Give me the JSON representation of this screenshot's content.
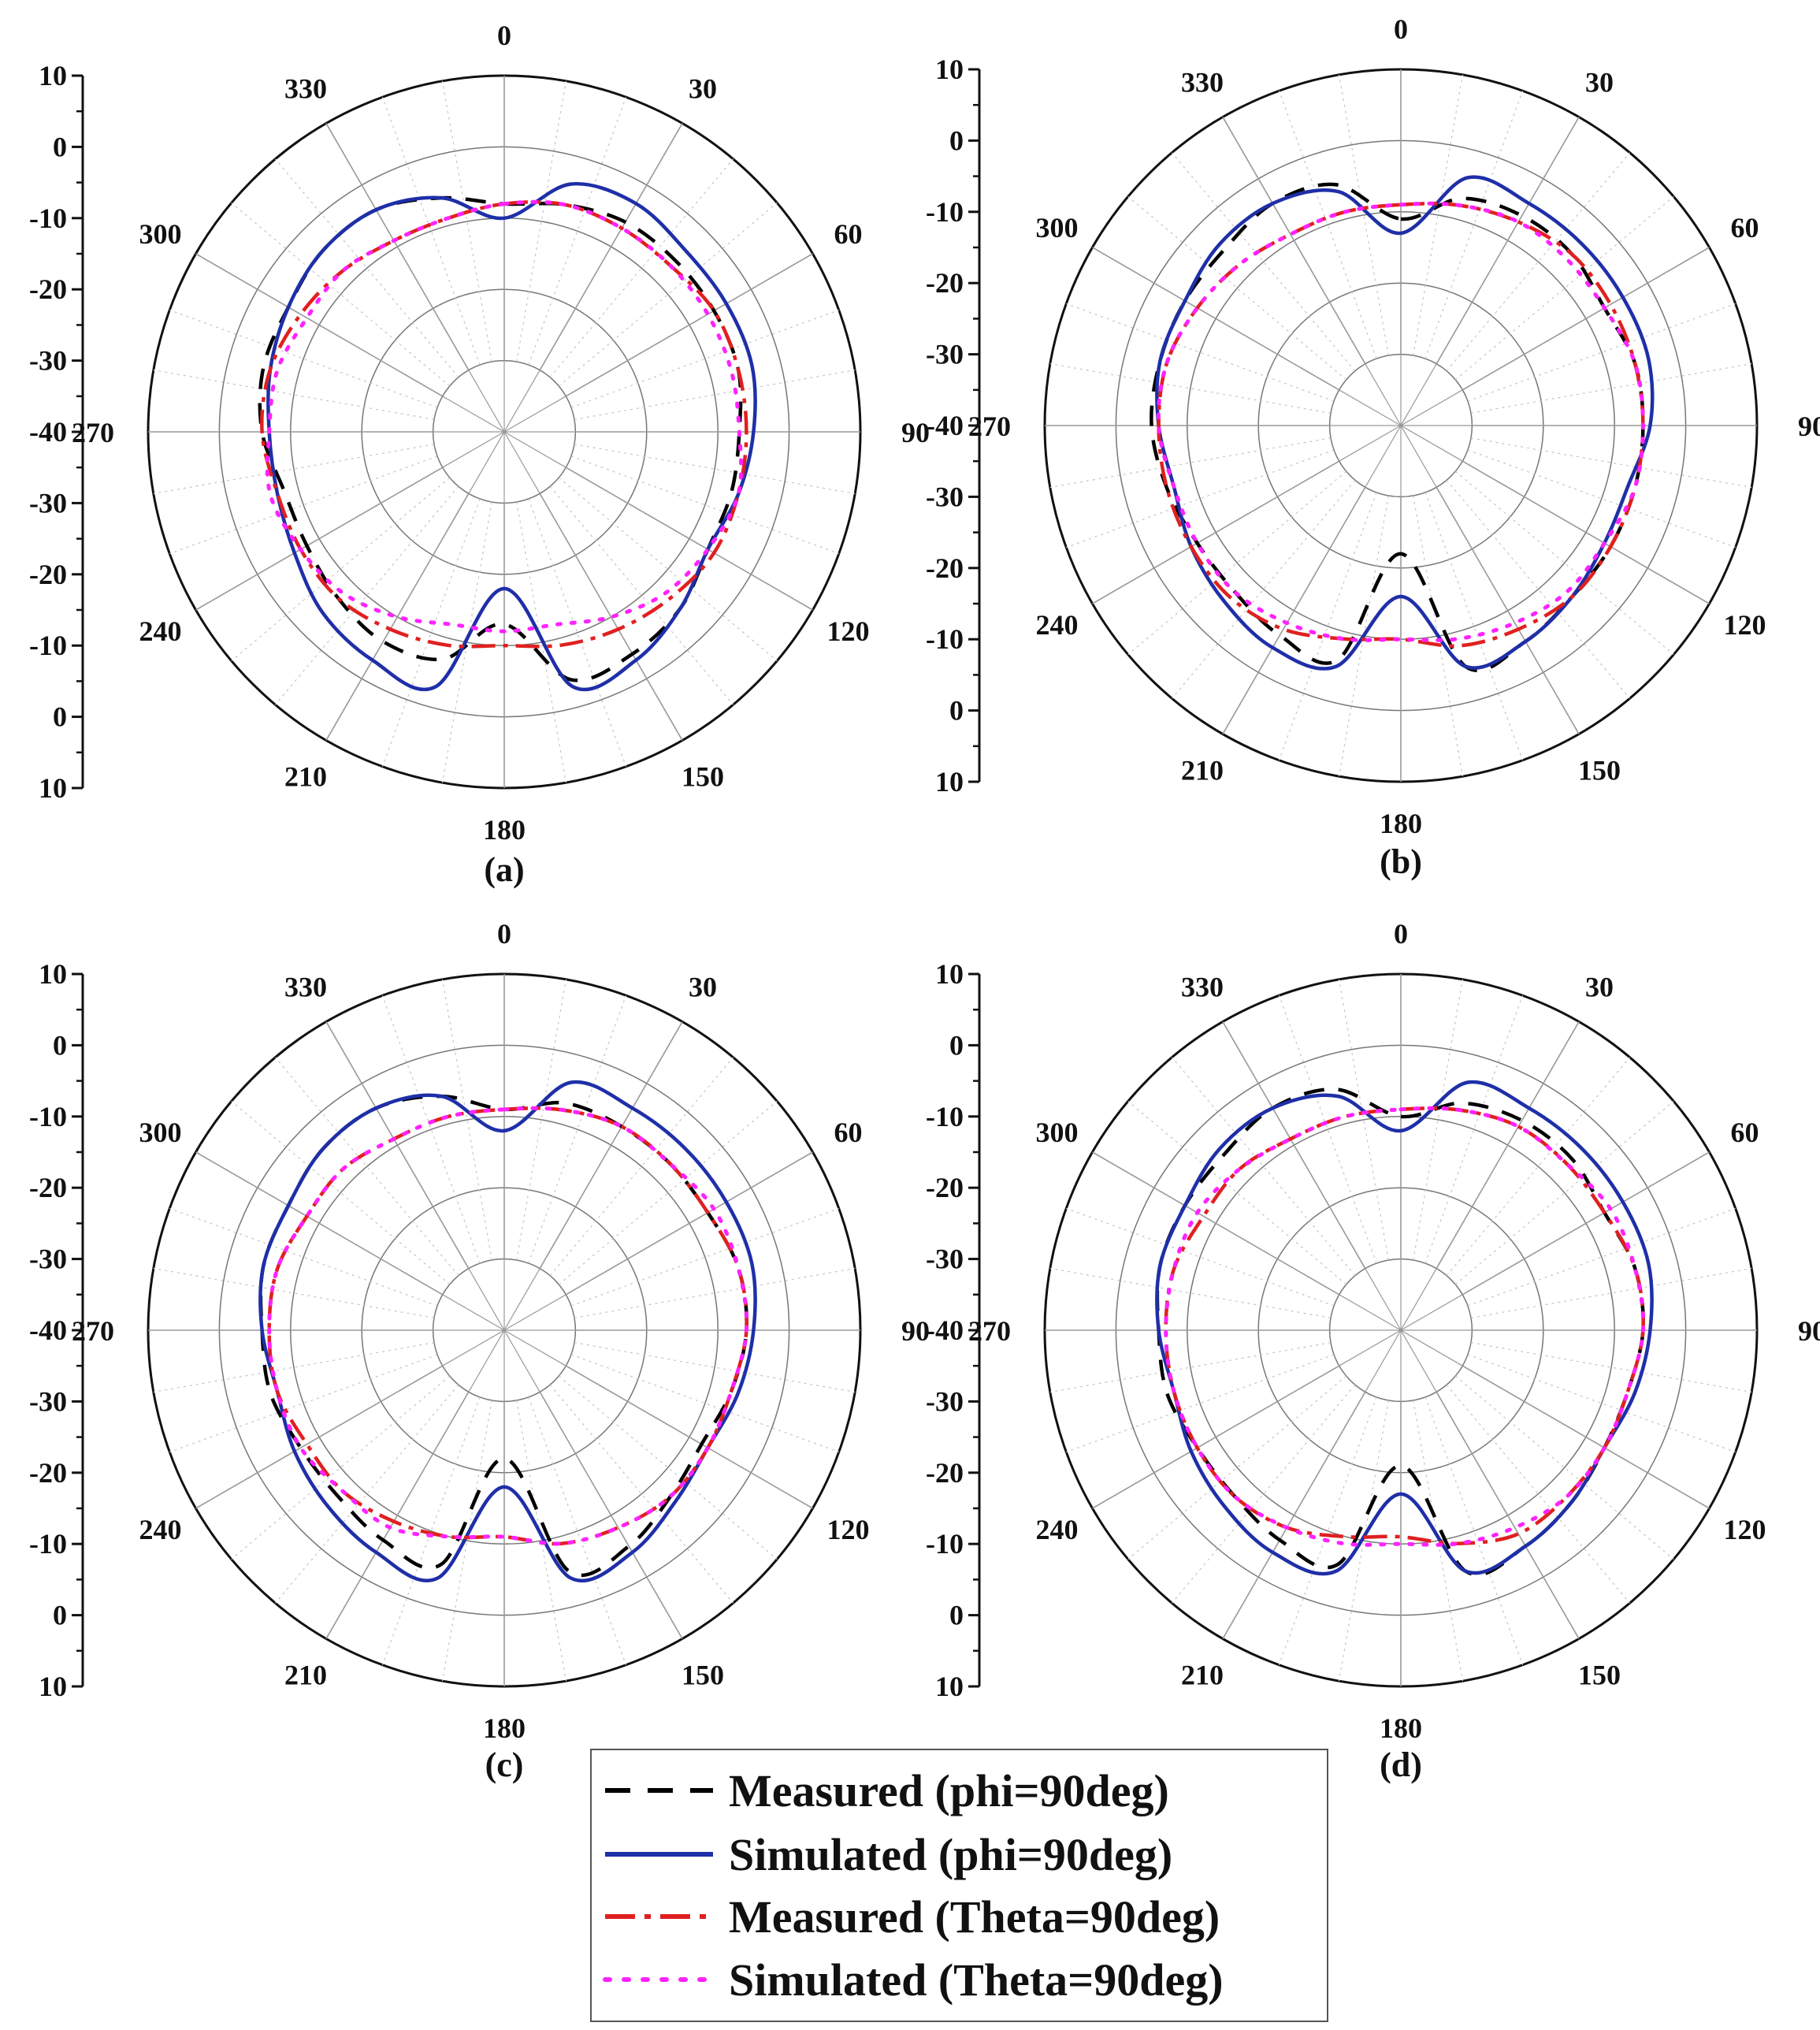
{
  "figure": {
    "legend": [
      {
        "key": "meas_phi",
        "label": "Measured (phi=90deg)",
        "color": "#000000",
        "style": "dash"
      },
      {
        "key": "sim_phi",
        "label": "Simulated (phi=90deg)",
        "color": "#1f2fa8",
        "style": "solid"
      },
      {
        "key": "meas_theta",
        "label": "Measured (Theta=90deg)",
        "color": "#e02020",
        "style": "dashdot"
      },
      {
        "key": "sim_theta",
        "label": "Simulated (Theta=90deg)",
        "color": "#ff22ff",
        "style": "dot"
      }
    ]
  },
  "chart_data": [
    {
      "type": "polar",
      "caption": "(a)",
      "angle_labels": [
        "0",
        "30",
        "60",
        "90",
        "120",
        "150",
        "180",
        "210",
        "240",
        "270",
        "300",
        "330"
      ],
      "radial_ticks": [
        "10",
        "0",
        "-10",
        "-20",
        "-30",
        "-40",
        "-30",
        "-20",
        "-10",
        "0",
        "10"
      ],
      "rlim": [
        -40,
        10
      ],
      "series": [
        {
          "key": "meas_phi",
          "angles": [
            0,
            15,
            30,
            45,
            60,
            75,
            90,
            105,
            120,
            135,
            150,
            165,
            180,
            195,
            210,
            225,
            240,
            255,
            270,
            285,
            300,
            315,
            330,
            345
          ],
          "values": [
            -8,
            -7,
            -6,
            -6,
            -6,
            -6,
            -7,
            -7,
            -7,
            -5,
            -4,
            -4,
            -13,
            -7,
            -6,
            -7,
            -8,
            -8,
            -6,
            -5,
            -5,
            -4,
            -4,
            -6
          ]
        },
        {
          "key": "sim_phi",
          "angles": [
            0,
            15,
            30,
            45,
            60,
            75,
            90,
            105,
            120,
            135,
            150,
            165,
            180,
            195,
            210,
            225,
            240,
            255,
            270,
            285,
            300,
            315,
            330,
            345
          ],
          "values": [
            -10,
            -4,
            -3,
            -4,
            -4,
            -4,
            -5,
            -6,
            -7,
            -5,
            -3,
            -3,
            -18,
            -3,
            -3,
            -4,
            -6,
            -7,
            -7,
            -6,
            -5,
            -4,
            -4,
            -6
          ]
        },
        {
          "key": "meas_theta",
          "angles": [
            0,
            15,
            30,
            45,
            60,
            75,
            90,
            105,
            120,
            135,
            150,
            165,
            180,
            195,
            210,
            225,
            240,
            255,
            270,
            285,
            300,
            315,
            330,
            345
          ],
          "values": [
            -8,
            -7,
            -7,
            -7,
            -6,
            -6,
            -6,
            -6,
            -6,
            -7,
            -8,
            -9,
            -10,
            -9,
            -8,
            -7,
            -7,
            -7,
            -6,
            -6,
            -7,
            -8,
            -9,
            -9
          ]
        },
        {
          "key": "sim_theta",
          "angles": [
            0,
            15,
            30,
            45,
            60,
            75,
            90,
            105,
            120,
            135,
            150,
            165,
            180,
            195,
            210,
            225,
            240,
            255,
            270,
            285,
            300,
            315,
            330,
            345
          ],
          "values": [
            -8,
            -7,
            -7,
            -7,
            -7,
            -7,
            -7,
            -6,
            -7,
            -8,
            -10,
            -12,
            -12,
            -12,
            -10,
            -8,
            -7,
            -6,
            -7,
            -7,
            -8,
            -8,
            -9,
            -9
          ]
        }
      ]
    },
    {
      "type": "polar",
      "caption": "(b)",
      "angle_labels": [
        "0",
        "30",
        "60",
        "90",
        "120",
        "150",
        "180",
        "210",
        "240",
        "270",
        "300",
        "330"
      ],
      "radial_ticks": [
        "10",
        "0",
        "-10",
        "-20",
        "-30",
        "-40",
        "-30",
        "-20",
        "-10",
        "0",
        "10"
      ],
      "rlim": [
        -40,
        10
      ],
      "series": [
        {
          "key": "meas_phi",
          "angles": [
            0,
            15,
            30,
            45,
            60,
            75,
            90,
            105,
            120,
            135,
            150,
            165,
            180,
            195,
            210,
            225,
            240,
            255,
            270,
            285,
            300,
            315,
            330,
            345
          ],
          "values": [
            -11,
            -7,
            -6,
            -6,
            -7,
            -6,
            -6,
            -6,
            -6,
            -6,
            -5,
            -5,
            -22,
            -6,
            -6,
            -7,
            -7,
            -6,
            -5,
            -5,
            -5,
            -5,
            -4,
            -5
          ]
        },
        {
          "key": "sim_phi",
          "angles": [
            0,
            15,
            30,
            45,
            60,
            75,
            90,
            105,
            120,
            135,
            150,
            165,
            180,
            195,
            210,
            225,
            240,
            255,
            270,
            285,
            300,
            315,
            330,
            345
          ],
          "values": [
            -13,
            -4,
            -4,
            -4,
            -4,
            -4,
            -5,
            -7,
            -7,
            -6,
            -5,
            -5,
            -16,
            -5,
            -4,
            -5,
            -6,
            -7,
            -6,
            -5,
            -5,
            -4,
            -4,
            -6
          ]
        },
        {
          "key": "meas_theta",
          "angles": [
            0,
            15,
            30,
            45,
            60,
            75,
            90,
            105,
            120,
            135,
            150,
            165,
            180,
            195,
            210,
            225,
            240,
            255,
            270,
            285,
            300,
            315,
            330,
            345
          ],
          "values": [
            -9,
            -8,
            -7,
            -6,
            -6,
            -6,
            -6,
            -6,
            -6,
            -6,
            -7,
            -8,
            -10,
            -9,
            -7,
            -6,
            -6,
            -6,
            -6,
            -6,
            -7,
            -8,
            -9,
            -9
          ]
        },
        {
          "key": "sim_theta",
          "angles": [
            0,
            15,
            30,
            45,
            60,
            75,
            90,
            105,
            120,
            135,
            150,
            165,
            180,
            195,
            210,
            225,
            240,
            255,
            270,
            285,
            300,
            315,
            330,
            345
          ],
          "values": [
            -9,
            -8,
            -7,
            -7,
            -7,
            -6,
            -6,
            -6,
            -7,
            -7,
            -8,
            -9,
            -10,
            -9,
            -8,
            -7,
            -7,
            -7,
            -6,
            -6,
            -7,
            -8,
            -9,
            -9
          ]
        }
      ]
    },
    {
      "type": "polar",
      "caption": "(c)",
      "angle_labels": [
        "0",
        "30",
        "60",
        "90",
        "120",
        "150",
        "180",
        "210",
        "240",
        "270",
        "300",
        "330"
      ],
      "radial_ticks": [
        "10",
        "0",
        "-10",
        "-20",
        "-30",
        "-40",
        "-30",
        "-20",
        "-10",
        "0",
        "10"
      ],
      "rlim": [
        -40,
        10
      ],
      "series": [
        {
          "key": "meas_phi",
          "angles": [
            0,
            15,
            30,
            45,
            60,
            75,
            90,
            105,
            120,
            135,
            150,
            165,
            180,
            195,
            210,
            225,
            240,
            255,
            270,
            285,
            300,
            315,
            330,
            345
          ],
          "values": [
            -9,
            -7,
            -7,
            -7,
            -7,
            -6,
            -6,
            -7,
            -8,
            -7,
            -5,
            -5,
            -22,
            -6,
            -6,
            -7,
            -7,
            -6,
            -6,
            -5,
            -5,
            -4,
            -4,
            -6
          ]
        },
        {
          "key": "sim_phi",
          "angles": [
            0,
            15,
            30,
            45,
            60,
            75,
            90,
            105,
            120,
            135,
            150,
            165,
            180,
            195,
            210,
            225,
            240,
            255,
            270,
            285,
            300,
            315,
            330,
            345
          ],
          "values": [
            -12,
            -4,
            -4,
            -4,
            -4,
            -4,
            -5,
            -6,
            -7,
            -6,
            -4,
            -4,
            -18,
            -4,
            -4,
            -5,
            -6,
            -7,
            -6,
            -5,
            -5,
            -4,
            -4,
            -6
          ]
        },
        {
          "key": "meas_theta",
          "angles": [
            0,
            15,
            30,
            45,
            60,
            75,
            90,
            105,
            120,
            135,
            150,
            165,
            180,
            195,
            210,
            225,
            240,
            255,
            270,
            285,
            300,
            315,
            330,
            345
          ],
          "values": [
            -9,
            -8,
            -7,
            -7,
            -7,
            -6,
            -6,
            -7,
            -7,
            -7,
            -8,
            -9,
            -11,
            -10,
            -9,
            -8,
            -8,
            -7,
            -7,
            -7,
            -8,
            -8,
            -9,
            -9
          ]
        },
        {
          "key": "sim_theta",
          "angles": [
            0,
            15,
            30,
            45,
            60,
            75,
            90,
            105,
            120,
            135,
            150,
            165,
            180,
            195,
            210,
            225,
            240,
            255,
            270,
            285,
            300,
            315,
            330,
            345
          ],
          "values": [
            -9,
            -8,
            -7,
            -7,
            -6,
            -6,
            -6,
            -7,
            -7,
            -7,
            -8,
            -9,
            -11,
            -10,
            -8,
            -8,
            -7,
            -7,
            -7,
            -7,
            -8,
            -8,
            -9,
            -9
          ]
        }
      ]
    },
    {
      "type": "polar",
      "caption": "(d)",
      "angle_labels": [
        "0",
        "30",
        "60",
        "90",
        "120",
        "150",
        "180",
        "210",
        "240",
        "270",
        "300",
        "330"
      ],
      "radial_ticks": [
        "10",
        "0",
        "-10",
        "-20",
        "-30",
        "-40",
        "-30",
        "-20",
        "-10",
        "0",
        "10"
      ],
      "rlim": [
        -40,
        10
      ],
      "series": [
        {
          "key": "meas_phi",
          "angles": [
            0,
            15,
            30,
            45,
            60,
            75,
            90,
            105,
            120,
            135,
            150,
            165,
            180,
            195,
            210,
            225,
            240,
            255,
            270,
            285,
            300,
            315,
            330,
            345
          ],
          "values": [
            -10,
            -7,
            -6,
            -6,
            -7,
            -6,
            -6,
            -7,
            -7,
            -6,
            -5,
            -5,
            -21,
            -6,
            -6,
            -7,
            -7,
            -6,
            -6,
            -5,
            -5,
            -5,
            -4,
            -5
          ]
        },
        {
          "key": "sim_phi",
          "angles": [
            0,
            15,
            30,
            45,
            60,
            75,
            90,
            105,
            120,
            135,
            150,
            165,
            180,
            195,
            210,
            225,
            240,
            255,
            270,
            285,
            300,
            315,
            330,
            345
          ],
          "values": [
            -12,
            -4,
            -4,
            -4,
            -4,
            -4,
            -5,
            -6,
            -7,
            -6,
            -5,
            -5,
            -17,
            -5,
            -4,
            -5,
            -6,
            -7,
            -6,
            -5,
            -5,
            -4,
            -4,
            -6
          ]
        },
        {
          "key": "meas_theta",
          "angles": [
            0,
            15,
            30,
            45,
            60,
            75,
            90,
            105,
            120,
            135,
            150,
            165,
            180,
            195,
            210,
            225,
            240,
            255,
            270,
            285,
            300,
            315,
            330,
            345
          ],
          "values": [
            -9,
            -8,
            -7,
            -7,
            -7,
            -6,
            -6,
            -7,
            -7,
            -7,
            -7,
            -9,
            -11,
            -10,
            -8,
            -7,
            -7,
            -7,
            -7,
            -7,
            -8,
            -8,
            -9,
            -9
          ]
        },
        {
          "key": "sim_theta",
          "angles": [
            0,
            15,
            30,
            45,
            60,
            75,
            90,
            105,
            120,
            135,
            150,
            165,
            180,
            195,
            210,
            225,
            240,
            255,
            270,
            285,
            300,
            315,
            330,
            345
          ],
          "values": [
            -9,
            -8,
            -7,
            -7,
            -6,
            -6,
            -6,
            -7,
            -7,
            -7,
            -8,
            -9,
            -10,
            -9,
            -8,
            -7,
            -7,
            -7,
            -7,
            -7,
            -7,
            -8,
            -9,
            -9
          ]
        }
      ]
    }
  ]
}
